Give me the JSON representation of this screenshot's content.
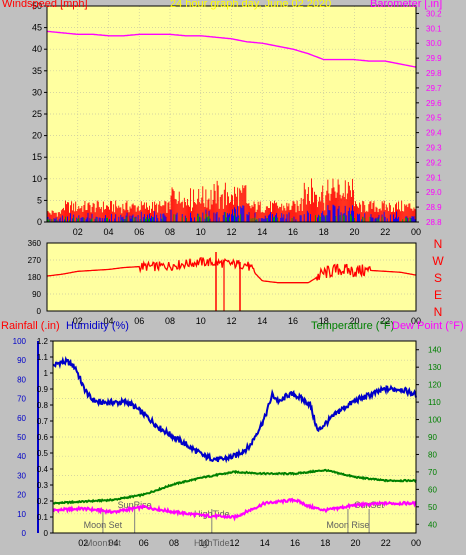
{
  "header": {
    "title": "24 hour graph day, June 02 2020",
    "windspeed_label": "Windspeed [mph]",
    "barometer_label": "Barometer [.in]"
  },
  "colors": {
    "plot_bg": "#ffffa0",
    "frame_bg": "#c0c0c0",
    "windspeed": "#ff0000",
    "barometer": "#ff00ff",
    "humidity": "#0000c8",
    "temperature": "#008000",
    "dewpoint": "#ff00ff",
    "wind_avg_blue": "#0000ff",
    "wind_green": "#00a000",
    "title": "#ffff00"
  },
  "chart_data": [
    {
      "type": "line",
      "name": "wind-barometer",
      "x_ticks": [
        "02",
        "04",
        "06",
        "08",
        "10",
        "12",
        "14",
        "16",
        "18",
        "20",
        "22",
        "00"
      ],
      "left_axis": {
        "label": "Windspeed [mph]",
        "ticks": [
          0,
          5,
          10,
          15,
          20,
          25,
          30,
          35,
          40,
          45,
          50
        ],
        "ylim": [
          0,
          50
        ]
      },
      "right_axis": {
        "label": "Barometer [.in]",
        "ticks": [
          28.8,
          28.9,
          29.0,
          29.1,
          29.2,
          29.3,
          29.4,
          29.5,
          29.6,
          29.7,
          29.8,
          29.9,
          30.0,
          30.1,
          30.2
        ],
        "ylim": [
          28.8,
          30.25
        ]
      },
      "barometer": {
        "hours": [
          0,
          1,
          2,
          3,
          4,
          5,
          6,
          7,
          8,
          9,
          10,
          11,
          12,
          13,
          14,
          15,
          16,
          17,
          18,
          19,
          20,
          21,
          22,
          23,
          24
        ],
        "values": [
          30.08,
          30.07,
          30.06,
          30.06,
          30.05,
          30.05,
          30.06,
          30.06,
          30.06,
          30.05,
          30.05,
          30.04,
          30.03,
          30.01,
          30.0,
          29.98,
          29.96,
          29.93,
          29.89,
          29.89,
          29.89,
          29.88,
          29.88,
          29.86,
          29.84
        ]
      },
      "windspeed_gust_max": 12,
      "windspeed_avg_typical": 2
    },
    {
      "type": "scatter",
      "name": "wind-direction",
      "x_ticks": [
        "02",
        "04",
        "06",
        "08",
        "10",
        "12",
        "14",
        "16",
        "18",
        "20",
        "22",
        "00"
      ],
      "left_ticks": [
        "360",
        "270",
        "180",
        "90",
        "0"
      ],
      "right_ticks": [
        "N",
        "W",
        "S",
        "E",
        "N"
      ],
      "ylim": [
        0,
        360
      ],
      "direction": {
        "hours": [
          0,
          1,
          2,
          3,
          4,
          5,
          6,
          7,
          8,
          9,
          10,
          11,
          12,
          13,
          14,
          15,
          16,
          17,
          18,
          19,
          20,
          21,
          22,
          23,
          24
        ],
        "values": [
          185,
          195,
          210,
          215,
          220,
          230,
          235,
          235,
          240,
          250,
          260,
          255,
          250,
          245,
          160,
          150,
          150,
          150,
          200,
          220,
          210,
          215,
          210,
          205,
          190
        ]
      }
    },
    {
      "type": "line",
      "name": "temp-humidity-rain",
      "x_ticks": [
        "02",
        "04",
        "06",
        "08",
        "10",
        "12",
        "14",
        "16",
        "18",
        "20",
        "22",
        "00"
      ],
      "labels": {
        "rainfall": "Rainfall (.in)",
        "humidity": "Humidity (%)",
        "temperature": "Temperature (°F)",
        "dewpoint": "Dew Point (°F)"
      },
      "humidity_axis": {
        "ticks": [
          0,
          10,
          20,
          30,
          40,
          50,
          60,
          70,
          80,
          90,
          100
        ],
        "ylim": [
          0,
          100
        ]
      },
      "rain_axis": {
        "ticks": [
          0,
          0.1,
          0.2,
          0.3,
          0.4,
          0.5,
          0.6,
          0.7,
          0.8,
          0.9,
          1,
          1.1,
          1.2
        ],
        "ylim": [
          0,
          1.2
        ]
      },
      "temp_axis": {
        "ticks": [
          40,
          50,
          60,
          70,
          80,
          90,
          100,
          110,
          120,
          130,
          140
        ],
        "ylim": [
          35,
          145
        ]
      },
      "humidity": {
        "hours": [
          0,
          0.5,
          1,
          1.5,
          2,
          2.5,
          3,
          4,
          5,
          6,
          7,
          8,
          9,
          10,
          11,
          12,
          13,
          14,
          14.5,
          15,
          15.5,
          16,
          17,
          17.5,
          18,
          19,
          20,
          21,
          22,
          23,
          24
        ],
        "values": [
          87,
          89,
          89,
          86,
          76,
          70,
          68,
          68,
          68,
          62,
          55,
          50,
          45,
          40,
          38,
          40,
          45,
          60,
          72,
          68,
          72,
          72,
          67,
          53,
          57,
          64,
          69,
          72,
          75,
          75,
          72
        ]
      },
      "temperature": {
        "hours": [
          0,
          2,
          4,
          6,
          8,
          10,
          12,
          14,
          16,
          18,
          20,
          22,
          24
        ],
        "values": [
          52,
          53,
          54,
          57,
          63,
          67,
          70,
          69,
          69,
          71,
          67,
          65,
          65
        ]
      },
      "dewpoint": {
        "hours": [
          0,
          2,
          4,
          6,
          8,
          10,
          12,
          14,
          15,
          16,
          17,
          18,
          20,
          22,
          24
        ],
        "values": [
          48,
          49,
          47,
          50,
          47,
          45,
          44,
          52,
          53,
          54,
          50,
          48,
          51,
          52,
          52
        ]
      },
      "rainfall": {
        "hours": [
          0,
          24
        ],
        "values": [
          0,
          0
        ]
      },
      "events": [
        {
          "label": "SunRise",
          "hour": 5.4
        },
        {
          "label": "Moon Set",
          "hour": 3.3
        },
        {
          "label": "HighTide",
          "hour": 10.5
        },
        {
          "label": "Moon Rise",
          "hour": 19.5
        },
        {
          "label": "SunSet",
          "hour": 20.9
        }
      ],
      "bottom_labels": [
        "MoonSet",
        "HighTide"
      ]
    }
  ]
}
